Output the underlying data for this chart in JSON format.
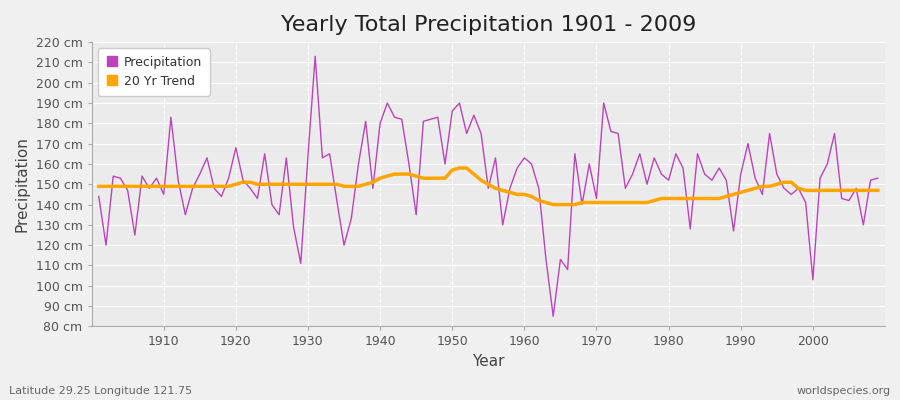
{
  "title": "Yearly Total Precipitation 1901 - 2009",
  "xlabel": "Year",
  "ylabel": "Precipitation",
  "bottom_left": "Latitude 29.25 Longitude 121.75",
  "bottom_right": "worldspecies.org",
  "years": [
    1901,
    1902,
    1903,
    1904,
    1905,
    1906,
    1907,
    1908,
    1909,
    1910,
    1911,
    1912,
    1913,
    1914,
    1915,
    1916,
    1917,
    1918,
    1919,
    1920,
    1921,
    1922,
    1923,
    1924,
    1925,
    1926,
    1927,
    1928,
    1929,
    1930,
    1931,
    1932,
    1933,
    1934,
    1935,
    1936,
    1937,
    1938,
    1939,
    1940,
    1941,
    1942,
    1943,
    1944,
    1945,
    1946,
    1947,
    1948,
    1949,
    1950,
    1951,
    1952,
    1953,
    1954,
    1955,
    1956,
    1957,
    1958,
    1959,
    1960,
    1961,
    1962,
    1963,
    1964,
    1965,
    1966,
    1967,
    1968,
    1969,
    1970,
    1971,
    1972,
    1973,
    1974,
    1975,
    1976,
    1977,
    1978,
    1979,
    1980,
    1981,
    1982,
    1983,
    1984,
    1985,
    1986,
    1987,
    1988,
    1989,
    1990,
    1991,
    1992,
    1993,
    1994,
    1995,
    1996,
    1997,
    1998,
    1999,
    2000,
    2001,
    2002,
    2003,
    2004,
    2005,
    2006,
    2007,
    2008,
    2009
  ],
  "precip": [
    144,
    120,
    154,
    153,
    147,
    125,
    154,
    148,
    153,
    145,
    183,
    152,
    135,
    148,
    155,
    163,
    148,
    144,
    153,
    168,
    152,
    148,
    143,
    165,
    140,
    135,
    163,
    129,
    111,
    164,
    213,
    163,
    165,
    142,
    120,
    133,
    160,
    181,
    148,
    180,
    190,
    183,
    182,
    160,
    135,
    181,
    182,
    183,
    160,
    186,
    190,
    175,
    184,
    175,
    148,
    163,
    130,
    148,
    158,
    163,
    160,
    148,
    113,
    85,
    113,
    108,
    165,
    140,
    160,
    143,
    190,
    176,
    175,
    148,
    155,
    165,
    150,
    163,
    155,
    152,
    165,
    158,
    128,
    165,
    155,
    152,
    158,
    152,
    127,
    155,
    170,
    153,
    145,
    175,
    155,
    148,
    145,
    148,
    141,
    103,
    153,
    160,
    175,
    143,
    142,
    148,
    130,
    152,
    153
  ],
  "trend": [
    149,
    149,
    149,
    149,
    149,
    149,
    149,
    149,
    149,
    149,
    149,
    149,
    149,
    149,
    149,
    149,
    149,
    149,
    149,
    150,
    151,
    151,
    150,
    150,
    150,
    150,
    150,
    150,
    150,
    150,
    150,
    150,
    150,
    150,
    149,
    149,
    149,
    150,
    151,
    153,
    154,
    155,
    155,
    155,
    154,
    153,
    153,
    153,
    153,
    157,
    158,
    158,
    155,
    152,
    150,
    148,
    147,
    146,
    145,
    145,
    144,
    142,
    141,
    140,
    140,
    140,
    140,
    141,
    141,
    141,
    141,
    141,
    141,
    141,
    141,
    141,
    141,
    142,
    143,
    143,
    143,
    143,
    143,
    143,
    143,
    143,
    143,
    144,
    145,
    146,
    147,
    148,
    149,
    149,
    150,
    151,
    151,
    148,
    147,
    147,
    147,
    147,
    147,
    147,
    147,
    147,
    147,
    147,
    147
  ],
  "precip_color": "#BB44BB",
  "trend_color": "#FFA500",
  "fig_bg_color": "#F0F0F0",
  "plot_bg_color": "#EBEBEB",
  "grid_color": "#FFFFFF",
  "ylim": [
    80,
    220
  ],
  "ytick_step": 10,
  "xlim_left": 1900,
  "xlim_right": 2010,
  "title_fontsize": 16,
  "axis_label_fontsize": 11,
  "tick_fontsize": 9,
  "annot_fontsize": 8
}
